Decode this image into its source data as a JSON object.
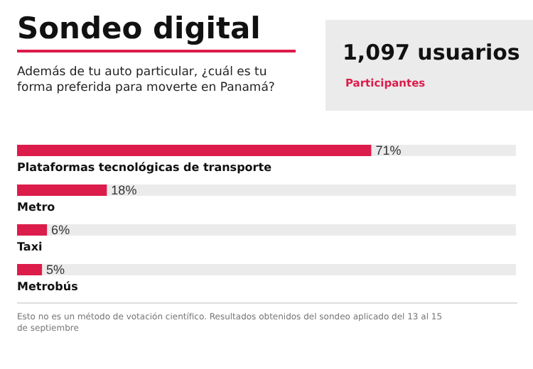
{
  "chart_data": {
    "type": "bar",
    "orientation": "horizontal",
    "title": "Sondeo digital",
    "subtitle": "Además de tu auto particular, ¿cuál es tu forma preferida para moverte en Panamá?",
    "categories": [
      "Plataformas tecnológicas de transporte",
      "Metro",
      "Taxi",
      "Metrobús"
    ],
    "values": [
      71,
      18,
      6,
      5
    ],
    "color": "#dc1c4b",
    "xlim": [
      0,
      100
    ],
    "value_labels": [
      "71%",
      "18%",
      "6%",
      "5%"
    ],
    "tick_labels": false,
    "annotations": [
      "1,097 usuarios",
      "Participantes",
      "Esto no es un método de votación científico. Resultados obtenidos del sondeo aplicado del 13 al 15 de septiembre"
    ]
  }
}
